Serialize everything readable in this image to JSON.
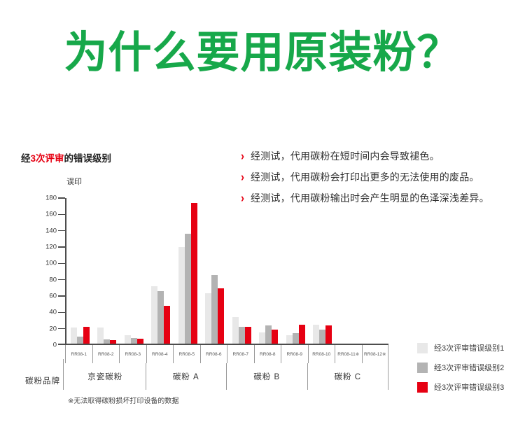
{
  "page_title": "为什么要用原装粉？",
  "colors": {
    "title_green": "#17a84a",
    "accent_red": "#e60012"
  },
  "bullets": [
    "经测试，代用碳粉在短时间内会导致褪色。",
    "经测试，代用碳粉会打印出更多的无法使用的废品。",
    "经测试，代用碳粉输出时会产生明显的色泽深浅差异。"
  ],
  "chart": {
    "header_prefix": "经",
    "header_highlight": "3次评审",
    "header_suffix": "的错误级别",
    "y_axis_title": "误印",
    "brand_row_label": "碳粉品牌",
    "footnote": "※无法取得碳粉损坏打印设备的数据"
  },
  "chart_data": {
    "type": "bar",
    "title": "经3次评审的错误级别",
    "ylabel": "误印",
    "ylim": [
      0,
      180
    ],
    "ytick_step": 20,
    "grid": false,
    "legend_position": "right-bottom",
    "categories": [
      "RR08-1",
      "RR08-2",
      "RR08-3",
      "RR08-4",
      "RR08-5",
      "RR08-6",
      "RR08-7",
      "RR08-8",
      "RR08-9",
      "RR08-10",
      "RR08-11※",
      "RR08-12※"
    ],
    "series": [
      {
        "name": "经3次评审错误级别1",
        "color": "#e8e8e8",
        "values": [
          20,
          20,
          10,
          70,
          118,
          62,
          33,
          14,
          10,
          23,
          null,
          null
        ]
      },
      {
        "name": "经3次评审错误级别2",
        "color": "#b3b3b3",
        "values": [
          9,
          5,
          7,
          64,
          135,
          84,
          21,
          22,
          13,
          17,
          null,
          null
        ]
      },
      {
        "name": "经3次评审错误级别3",
        "color": "#e60012",
        "values": [
          21,
          4,
          6,
          46,
          172,
          68,
          21,
          17,
          23,
          22,
          null,
          null
        ]
      }
    ],
    "brand_groups": [
      {
        "label": "京瓷碳粉",
        "categories_span": [
          1,
          3
        ]
      },
      {
        "label": "碳粉 A",
        "categories_span": [
          4,
          6
        ]
      },
      {
        "label": "碳粉 B",
        "categories_span": [
          7,
          9
        ]
      },
      {
        "label": "碳粉 C",
        "categories_span": [
          10,
          12
        ]
      }
    ],
    "footnote": "※无法取得碳粉损坏打印设备的数据"
  },
  "legend": [
    {
      "label": "经3次评审错误级别1",
      "color": "#e8e8e8"
    },
    {
      "label": "经3次评审错误级别2",
      "color": "#b3b3b3"
    },
    {
      "label": "经3次评审错误级别3",
      "color": "#e60012"
    }
  ]
}
